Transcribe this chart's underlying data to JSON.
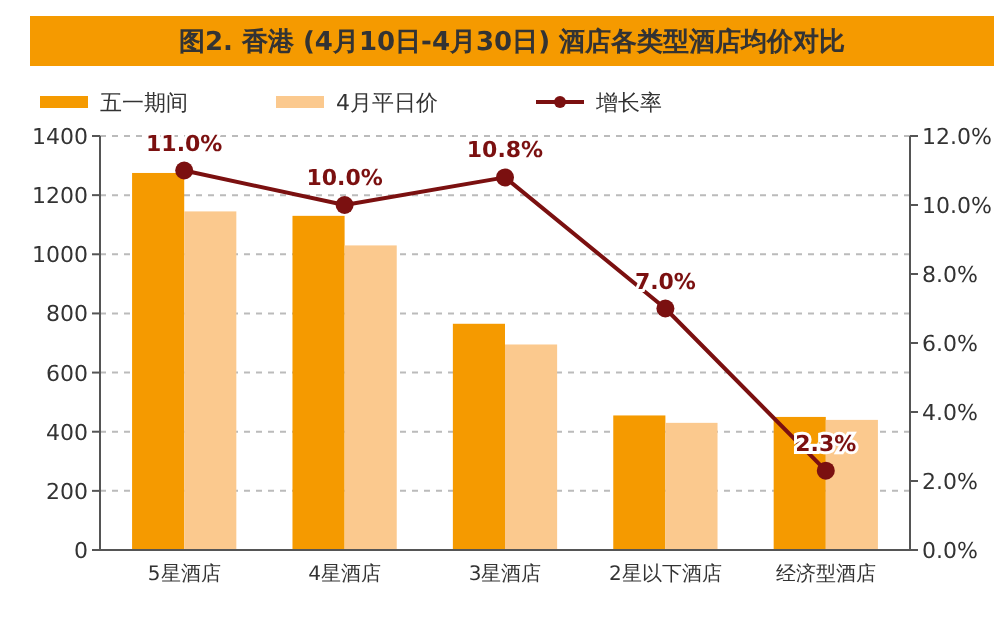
{
  "chart_data": {
    "type": "bar",
    "title": "图2. 香港 (4月10日-4月30日) 酒店各类型酒店均价对比",
    "categories": [
      "5星酒店",
      "4星酒店",
      "3星酒店",
      "2星以下酒店",
      "经济型酒店"
    ],
    "series": [
      {
        "name": "五一期间",
        "color": "#f59a00",
        "values": [
          1275,
          1130,
          765,
          455,
          450
        ]
      },
      {
        "name": "4月平日价",
        "color": "#fbc98e",
        "values": [
          1145,
          1030,
          695,
          430,
          440
        ]
      },
      {
        "name": "增长率",
        "type": "line",
        "axis": "y2",
        "color": "#7b1010",
        "marker": "circle",
        "values": [
          11.0,
          10.0,
          10.8,
          7.0,
          2.3
        ],
        "value_labels": [
          "11.0%",
          "10.0%",
          "10.8%",
          "7.0%",
          "2.3%"
        ]
      }
    ],
    "ylim": [
      0,
      1400
    ],
    "yticks": [
      0,
      200,
      400,
      600,
      800,
      1000,
      1200,
      1400
    ],
    "y2lim": [
      0,
      12
    ],
    "y2ticks": [
      {
        "value": 0,
        "label": "0.0%"
      },
      {
        "value": 2,
        "label": "2.0%"
      },
      {
        "value": 4,
        "label": "4.0%"
      },
      {
        "value": 6,
        "label": "6.0%"
      },
      {
        "value": 8,
        "label": "8.0%"
      },
      {
        "value": 10,
        "label": "10.0%"
      },
      {
        "value": 12,
        "label": "12.0%"
      }
    ],
    "grid": "y",
    "legend": "top left"
  }
}
